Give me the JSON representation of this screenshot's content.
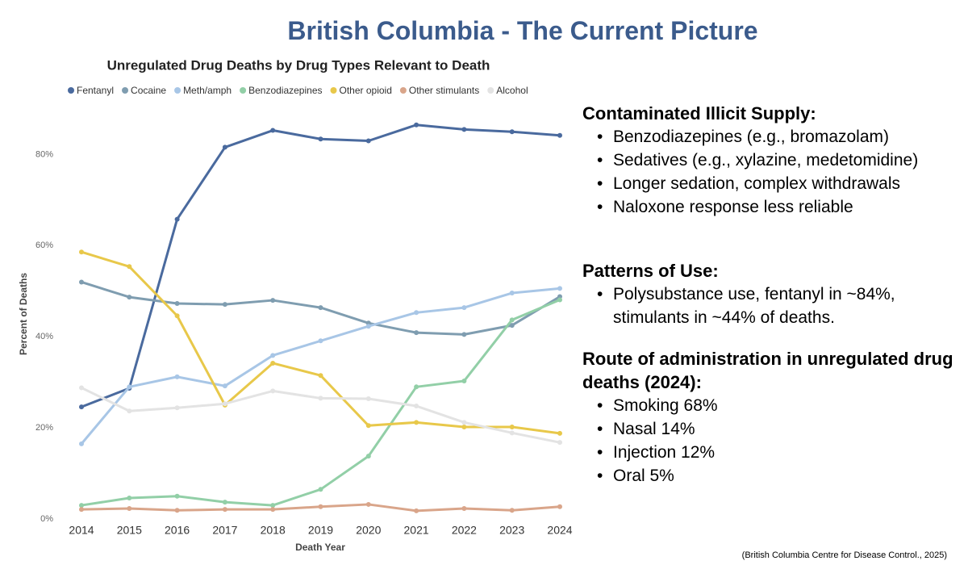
{
  "slide_title": "British Columbia - The Current Picture",
  "sections": [
    {
      "heading": "Contaminated Illicit Supply:",
      "bullets": [
        "Benzodiazepines (e.g., bromazolam)",
        "Sedatives (e.g., xylazine, medetomidine)",
        "Longer sedation, complex withdrawals",
        "Naloxone response less reliable"
      ]
    },
    {
      "heading": "Patterns of Use:",
      "bullets": [
        "Polysubstance use, fentanyl in ~84%, stimulants in ~44% of deaths."
      ]
    },
    {
      "heading": "Route of administration in unregulated drug deaths (2024):",
      "bullets": [
        "Smoking 68%",
        "Nasal 14%",
        "Injection 12%",
        "Oral 5%"
      ]
    }
  ],
  "source_note": "(British Columbia Centre for Disease Control., 2025)",
  "chart_data": {
    "type": "line",
    "title": "Unregulated Drug Deaths by Drug Types Relevant to Death",
    "x_label": "Death Year",
    "y_label": "Percent of Deaths",
    "x": [
      2014,
      2015,
      2016,
      2017,
      2018,
      2019,
      2020,
      2021,
      2022,
      2023,
      2024
    ],
    "xlim": [
      2014,
      2024
    ],
    "ylim": [
      0,
      90
    ],
    "yticks": [
      {
        "value": 0,
        "label": "0%"
      },
      {
        "value": 20,
        "label": "20%"
      },
      {
        "value": 40,
        "label": "40%"
      },
      {
        "value": 60,
        "label": "60%"
      },
      {
        "value": 80,
        "label": "80%"
      }
    ],
    "grid": false,
    "legend": "top",
    "series": [
      {
        "name": "Fentanyl",
        "color": "#4a6a9e",
        "values": [
          24.6,
          28.7,
          65.8,
          81.6,
          85.3,
          83.4,
          83.0,
          86.5,
          85.5,
          85.0,
          84.2
        ]
      },
      {
        "name": "Cocaine",
        "color": "#7f9db0",
        "values": [
          52.0,
          48.7,
          47.3,
          47.1,
          48.0,
          46.4,
          43.0,
          40.9,
          40.5,
          42.5,
          48.8
        ]
      },
      {
        "name": "Meth/amph",
        "color": "#a8c6e6",
        "values": [
          16.5,
          29.0,
          31.2,
          29.2,
          35.9,
          39.1,
          42.3,
          45.3,
          46.4,
          49.6,
          50.6
        ]
      },
      {
        "name": "Benzodiazepines",
        "color": "#92cfa7",
        "values": [
          3.0,
          4.6,
          5.0,
          3.7,
          3.0,
          6.5,
          13.8,
          29.0,
          30.3,
          43.7,
          48.1
        ]
      },
      {
        "name": "Other opioid",
        "color": "#e8c84a",
        "values": [
          58.6,
          55.4,
          44.6,
          25.0,
          34.2,
          31.5,
          20.5,
          21.2,
          20.2,
          20.2,
          18.8
        ]
      },
      {
        "name": "Other stimulants",
        "color": "#d9a58a",
        "values": [
          2.1,
          2.3,
          1.9,
          2.1,
          2.1,
          2.7,
          3.2,
          1.8,
          2.3,
          1.9,
          2.7
        ]
      },
      {
        "name": "Alcohol",
        "color": "#e3e3e3",
        "values": [
          28.8,
          23.7,
          24.4,
          25.3,
          28.1,
          26.5,
          26.4,
          24.8,
          21.2,
          18.9,
          16.8
        ]
      }
    ]
  }
}
